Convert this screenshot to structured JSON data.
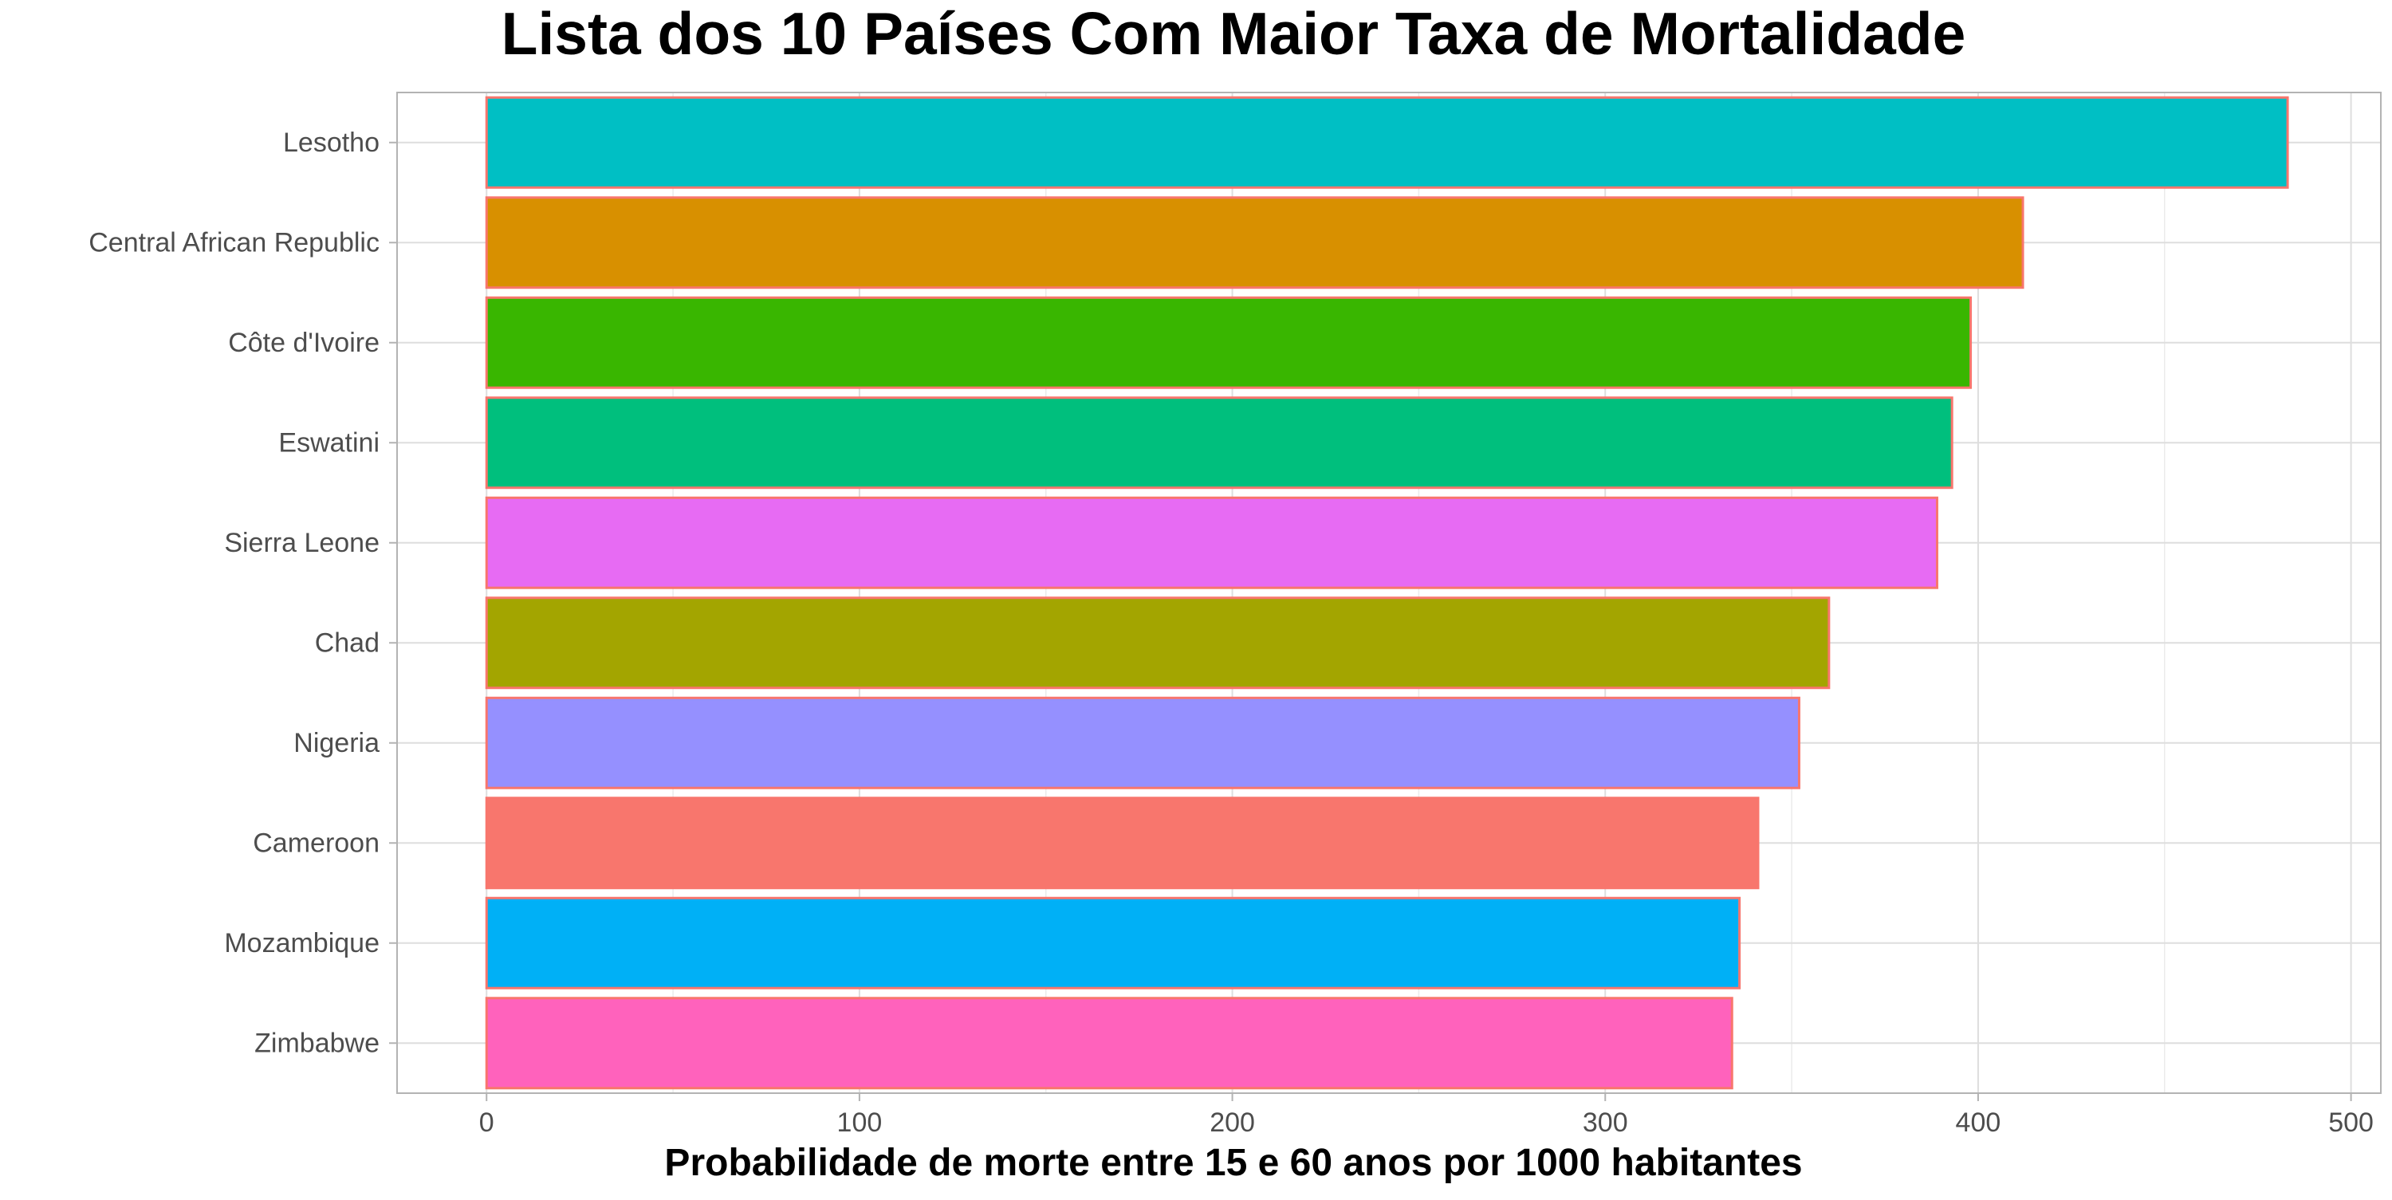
{
  "chart_data": {
    "type": "bar",
    "orientation": "horizontal",
    "title": "Lista dos 10 Países Com Maior Taxa de Mortalidade",
    "xlabel": "Probabilidade de morte entre 15 e 60 anos por 1000 habitantes",
    "ylabel": "",
    "xlim": [
      -24,
      508
    ],
    "x_ticks": [
      0,
      100,
      200,
      300,
      400,
      500
    ],
    "x_tick_labels": [
      "0",
      "100",
      "200",
      "300",
      "400",
      "500"
    ],
    "grid": true,
    "legend": "none",
    "bar_outline_color": "#F8766D",
    "categories": [
      "Lesotho",
      "Central African Republic",
      "Côte d'Ivoire",
      "Eswatini",
      "Sierra Leone",
      "Chad",
      "Nigeria",
      "Cameroon",
      "Mozambique",
      "Zimbabwe"
    ],
    "values": [
      483,
      412,
      398,
      393,
      389,
      360,
      352,
      341,
      336,
      334
    ],
    "colors": [
      "#00BFC4",
      "#D89000",
      "#39B600",
      "#00BF7D",
      "#E76BF3",
      "#A3A500",
      "#9590FF",
      "#F8766D",
      "#00B0F6",
      "#FF62BC"
    ]
  }
}
